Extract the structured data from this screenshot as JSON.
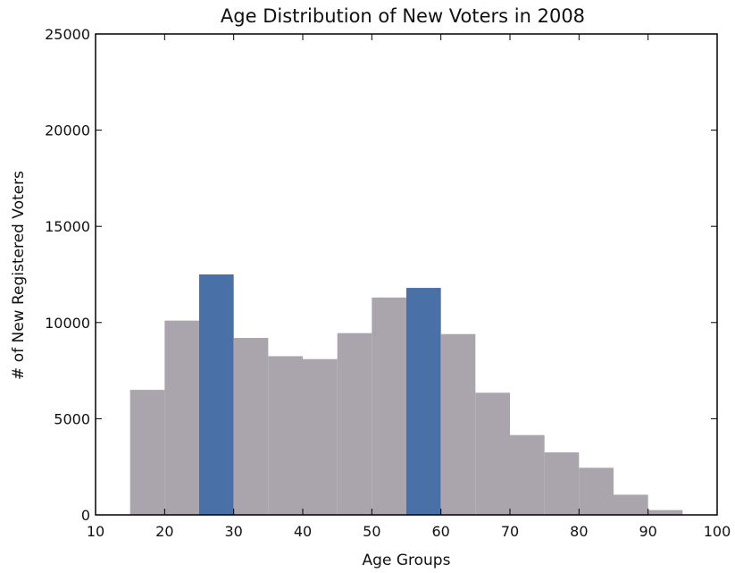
{
  "chart_data": {
    "type": "bar",
    "title": "Age Distribution of New Voters in 2008",
    "xlabel": "Age Groups",
    "ylabel": "# of New Registered Voters",
    "xlim": [
      10,
      100
    ],
    "ylim": [
      0,
      25000
    ],
    "xticks": [
      "10",
      "20",
      "30",
      "40",
      "50",
      "60",
      "70",
      "80",
      "90",
      "100"
    ],
    "yticks": [
      "0",
      "5000",
      "10000",
      "15000",
      "20000",
      "25000"
    ],
    "grid": false,
    "legend": "none",
    "bins": [
      {
        "start": 15,
        "end": 20,
        "value": 6500,
        "highlight": false
      },
      {
        "start": 20,
        "end": 25,
        "value": 10100,
        "highlight": false
      },
      {
        "start": 25,
        "end": 30,
        "value": 12500,
        "highlight": true
      },
      {
        "start": 30,
        "end": 35,
        "value": 9200,
        "highlight": false
      },
      {
        "start": 35,
        "end": 40,
        "value": 8250,
        "highlight": false
      },
      {
        "start": 40,
        "end": 45,
        "value": 8100,
        "highlight": false
      },
      {
        "start": 45,
        "end": 50,
        "value": 9450,
        "highlight": false
      },
      {
        "start": 50,
        "end": 55,
        "value": 11300,
        "highlight": false
      },
      {
        "start": 55,
        "end": 60,
        "value": 11800,
        "highlight": true
      },
      {
        "start": 60,
        "end": 65,
        "value": 9400,
        "highlight": false
      },
      {
        "start": 65,
        "end": 70,
        "value": 6350,
        "highlight": false
      },
      {
        "start": 70,
        "end": 75,
        "value": 4150,
        "highlight": false
      },
      {
        "start": 75,
        "end": 80,
        "value": 3250,
        "highlight": false
      },
      {
        "start": 80,
        "end": 85,
        "value": 2450,
        "highlight": false
      },
      {
        "start": 85,
        "end": 90,
        "value": 1050,
        "highlight": false
      },
      {
        "start": 90,
        "end": 95,
        "value": 250,
        "highlight": false
      }
    ],
    "colors": {
      "default": "#aaa5ac",
      "highlight": "#4a70a8"
    }
  }
}
